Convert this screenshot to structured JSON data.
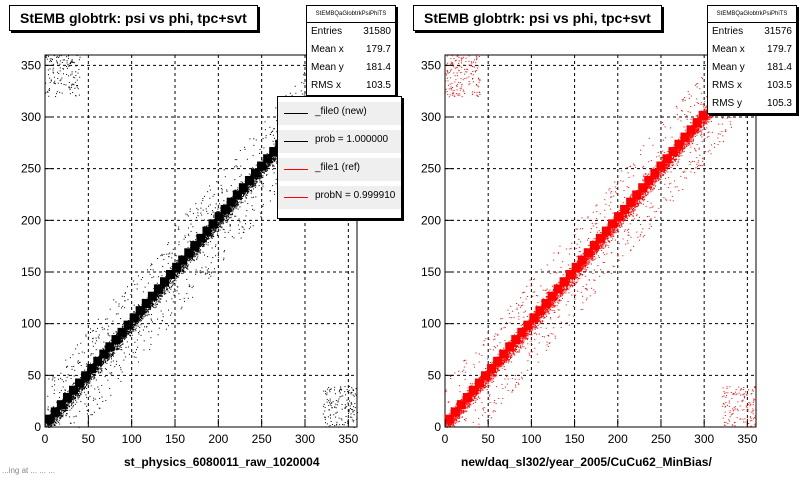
{
  "chart_data": [
    {
      "type": "scatter",
      "title": "StEMB globtrk: psi vs phi, tpc+svt",
      "xlabel": "st_physics_6080011_raw_1020004",
      "ylabel": "",
      "xlim": [
        0,
        360
      ],
      "ylim": [
        0,
        360
      ],
      "xticks": [
        0,
        50,
        100,
        150,
        200,
        250,
        300,
        350
      ],
      "yticks": [
        0,
        50,
        100,
        150,
        200,
        250,
        300,
        350
      ],
      "grid": true,
      "marker_color": "#000000",
      "stats": {
        "name": "StEMBQaGlobtrkPsiPhiTS",
        "rows": [
          {
            "label": "Entries",
            "value": "31580"
          },
          {
            "label": "Mean x",
            "value": "179.7"
          },
          {
            "label": "Mean y",
            "value": "181.4"
          },
          {
            "label": "RMS x",
            "value": "103.5"
          }
        ]
      },
      "legend": {
        "placement": "right",
        "entries": [
          {
            "label": "_file0 (new)",
            "color": "#000000"
          },
          {
            "label": "prob = 1.000000",
            "color": "#000000"
          },
          {
            "label": "_file1 (ref)",
            "color": "#ff0000"
          },
          {
            "label": "probN = 0.999910",
            "color": "#ff0000"
          }
        ]
      }
    },
    {
      "type": "scatter",
      "title": "StEMB globtrk: psi vs phi, tpc+svt",
      "xlabel": "new/daq_sl302/year_2005/CuCu62_MinBias/",
      "ylabel": "",
      "xlim": [
        0,
        360
      ],
      "ylim": [
        0,
        360
      ],
      "xticks": [
        0,
        50,
        100,
        150,
        200,
        250,
        300,
        350
      ],
      "yticks": [
        0,
        50,
        100,
        150,
        200,
        250,
        300,
        350
      ],
      "grid": true,
      "marker_color": "#ff0000",
      "stats": {
        "name": "StEMBQaGlobtrkPsiPhiTS",
        "rows": [
          {
            "label": "Entries",
            "value": "31576"
          },
          {
            "label": "Mean x",
            "value": "179.7"
          },
          {
            "label": "Mean y",
            "value": "181.4"
          },
          {
            "label": "RMS x",
            "value": "103.5"
          },
          {
            "label": "RMS y",
            "value": "105.3"
          }
        ]
      }
    }
  ],
  "footer": "...ing at ... ... ..."
}
